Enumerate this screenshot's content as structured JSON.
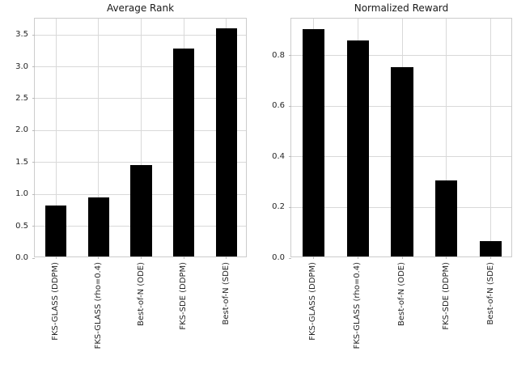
{
  "figure": {
    "background": "#ffffff"
  },
  "colors": {
    "bar": "#000000",
    "grid": "#d9d9d9",
    "spine": "#cccccc",
    "tick": "#bbbbbb",
    "text": "#262626",
    "title_text": "#1a1a1a"
  },
  "chart_data": [
    {
      "type": "bar",
      "title": "Average Rank",
      "categories": [
        "FKS-GLASS (DDPM)",
        "FKS-GLASS (rho=0.4)",
        "Best-of-N (ODE)",
        "FKS-SDE (DDPM)",
        "Best-of-N (SDE)"
      ],
      "values": [
        0.8,
        0.93,
        1.43,
        3.26,
        3.58
      ],
      "xlabel": "",
      "ylabel": "",
      "ylim": [
        0,
        3.755
      ],
      "yticks": [
        0.0,
        0.5,
        1.0,
        1.5,
        2.0,
        2.5,
        3.0,
        3.5
      ],
      "ytick_labels": [
        "0.0",
        "0.5",
        "1.0",
        "1.5",
        "2.0",
        "2.5",
        "3.0",
        "3.5"
      ],
      "grid": true,
      "bar_color": "#000000",
      "bar_width_fraction": 0.5,
      "legend": null
    },
    {
      "type": "bar",
      "title": "Normalized Reward",
      "categories": [
        "FKS-GLASS (DDPM)",
        "FKS-GLASS (rho=0.4)",
        "Best-of-N (ODE)",
        "FKS-SDE (DDPM)",
        "Best-of-N (SDE)"
      ],
      "values": [
        0.9,
        0.855,
        0.75,
        0.3,
        0.06
      ],
      "xlabel": "",
      "ylabel": "",
      "ylim": [
        0,
        0.947
      ],
      "yticks": [
        0.0,
        0.2,
        0.4,
        0.6,
        0.8
      ],
      "ytick_labels": [
        "0.0",
        "0.2",
        "0.4",
        "0.6",
        "0.8"
      ],
      "grid": true,
      "bar_color": "#000000",
      "bar_width_fraction": 0.5,
      "legend": null
    }
  ]
}
